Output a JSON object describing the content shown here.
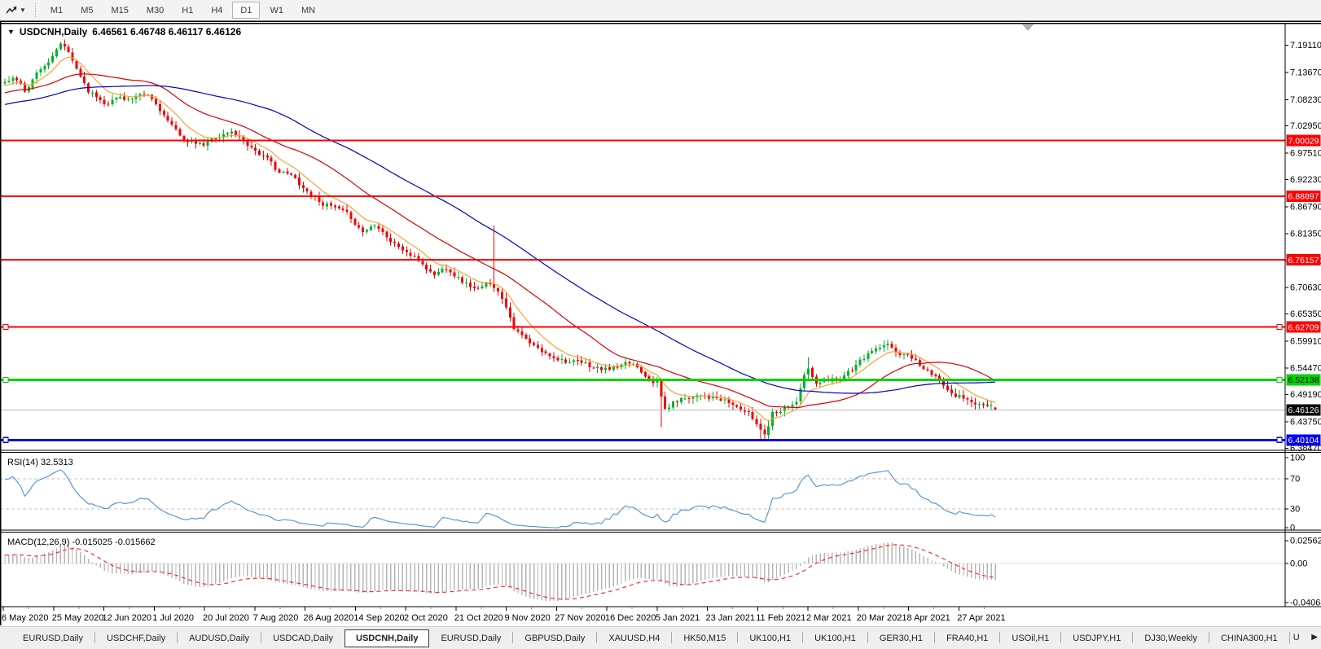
{
  "toolbar": {
    "timeframes": [
      "M1",
      "M5",
      "M15",
      "M30",
      "H1",
      "H4",
      "D1",
      "W1",
      "MN"
    ],
    "active_timeframe": "D1"
  },
  "chart_header": {
    "collapse_icon": "▼",
    "title": "USDCNH,Daily",
    "ohlc_display": "6.46561 6.46748 6.46117 6.46126"
  },
  "indicators": {
    "rsi": {
      "label": "RSI(14)",
      "value": "32.5313"
    },
    "macd": {
      "label": "MACD(12,26,9)",
      "values": "-0.015025 -0.015662"
    }
  },
  "tabs": {
    "items": [
      "EURUSD,Daily",
      "USDCHF,Daily",
      "AUDUSD,Daily",
      "USDCAD,Daily",
      "USDCNH,Daily",
      "EURUSD,Daily",
      "GBPUSD,Daily",
      "XAUUSD,H4",
      "HK50,M15",
      "UK100,H1",
      "UK100,H1",
      "GER30,H1",
      "FRA40,H1",
      "USOil,H1",
      "USDJPY,H1",
      "DJ30,Weekly",
      "CHINA300,H1"
    ],
    "active_index": 4,
    "overflow_item": "U",
    "scroll_right_icon": "▶"
  },
  "colors": {
    "bull": "#00b22c",
    "bear": "#f20000",
    "ma_fast": "#ffa033",
    "ma_mid": "#dd0000",
    "ma_slow": "#0000cc",
    "rsi_line": "#4f8fd6",
    "rsi_levels": "#c6c6c6",
    "macd_hist": "#b6b6b6",
    "macd_signal": "#ff2020",
    "price_line": "#b8b8b8",
    "panel_border": "#000000",
    "axis_text": "#000000",
    "shift_marker": "#b0b0b0",
    "label_black_bg": "#000000"
  },
  "chart_data": {
    "type": "candlestick",
    "title": "USDCNH,Daily",
    "last_candle_ohlc": {
      "open": 6.46561,
      "high": 6.46748,
      "low": 6.46117,
      "close": 6.46126
    },
    "x_axis": {
      "labels": [
        "6 May 2020",
        "25 May 2020",
        "12 Jun 2020",
        "1 Jul 2020",
        "20 Jul 2020",
        "7 Aug 2020",
        "26 Aug 2020",
        "14 Sep 2020",
        "2 Oct 2020",
        "21 Oct 2020",
        "9 Nov 2020",
        "27 Nov 2020",
        "16 Dec 2020",
        "5 Jan 2021",
        "23 Jan 2021",
        "11 Feb 2021",
        "2 Mar 2021",
        "20 Mar 2021",
        "8 Apr 2021",
        "27 Apr 2021"
      ]
    },
    "y_axis": {
      "range": [
        6.381,
        7.207
      ],
      "ticks": [
        "7.19110",
        "7.13670",
        "7.08230",
        "7.02950",
        "6.97510",
        "6.92230",
        "6.86790",
        "6.81350",
        "6.75910",
        "6.70630",
        "6.65350",
        "6.59910",
        "6.54470",
        "6.49190",
        "6.43750",
        "6.38470"
      ]
    },
    "price_path": [
      [
        0,
        7.115
      ],
      [
        0.01,
        7.128
      ],
      [
        0.02,
        7.1
      ],
      [
        0.035,
        7.145
      ],
      [
        0.05,
        7.17
      ],
      [
        0.058,
        7.196
      ],
      [
        0.07,
        7.15
      ],
      [
        0.085,
        7.1
      ],
      [
        0.1,
        7.078
      ],
      [
        0.115,
        7.088
      ],
      [
        0.13,
        7.084
      ],
      [
        0.145,
        7.088
      ],
      [
        0.158,
        7.06
      ],
      [
        0.17,
        7.022
      ],
      [
        0.185,
        6.998
      ],
      [
        0.2,
        6.988
      ],
      [
        0.215,
        7.01
      ],
      [
        0.23,
        7.018
      ],
      [
        0.245,
        6.995
      ],
      [
        0.26,
        6.972
      ],
      [
        0.275,
        6.94
      ],
      [
        0.29,
        6.928
      ],
      [
        0.305,
        6.9
      ],
      [
        0.32,
        6.878
      ],
      [
        0.335,
        6.862
      ],
      [
        0.35,
        6.842
      ],
      [
        0.362,
        6.818
      ],
      [
        0.375,
        6.838
      ],
      [
        0.39,
        6.8
      ],
      [
        0.405,
        6.778
      ],
      [
        0.42,
        6.756
      ],
      [
        0.433,
        6.732
      ],
      [
        0.447,
        6.748
      ],
      [
        0.462,
        6.72
      ],
      [
        0.478,
        6.7
      ],
      [
        0.492,
        6.716
      ],
      [
        0.505,
        6.678
      ],
      [
        0.515,
        6.625
      ],
      [
        0.53,
        6.592
      ],
      [
        0.545,
        6.572
      ],
      [
        0.56,
        6.566
      ],
      [
        0.576,
        6.556
      ],
      [
        0.59,
        6.548
      ],
      [
        0.605,
        6.541
      ],
      [
        0.62,
        6.546
      ],
      [
        0.635,
        6.552
      ],
      [
        0.649,
        6.53
      ],
      [
        0.66,
        6.518
      ],
      [
        0.665,
        6.46
      ],
      [
        0.677,
        6.478
      ],
      [
        0.69,
        6.488
      ],
      [
        0.704,
        6.497
      ],
      [
        0.72,
        6.482
      ],
      [
        0.735,
        6.47
      ],
      [
        0.75,
        6.456
      ],
      [
        0.762,
        6.425
      ],
      [
        0.768,
        6.415
      ],
      [
        0.775,
        6.458
      ],
      [
        0.79,
        6.472
      ],
      [
        0.8,
        6.482
      ],
      [
        0.81,
        6.548
      ],
      [
        0.818,
        6.512
      ],
      [
        0.83,
        6.516
      ],
      [
        0.845,
        6.53
      ],
      [
        0.86,
        6.55
      ],
      [
        0.875,
        6.578
      ],
      [
        0.89,
        6.588
      ],
      [
        0.903,
        6.574
      ],
      [
        0.917,
        6.566
      ],
      [
        0.93,
        6.542
      ],
      [
        0.944,
        6.516
      ],
      [
        0.958,
        6.498
      ],
      [
        0.972,
        6.482
      ],
      [
        0.986,
        6.47
      ],
      [
        1,
        6.4613
      ]
    ],
    "events": {
      "spikes": [
        {
          "t": 0.492,
          "high": 6.83
        },
        {
          "t": 0.664,
          "low": 6.427
        },
        {
          "t": 0.764,
          "low": 6.398
        },
        {
          "t": 0.812,
          "high": 6.567
        }
      ]
    },
    "horizontal_lines": [
      {
        "price": 7.00029,
        "color": "#fe0000",
        "width": 2,
        "label_text": "#ffffff",
        "handles": false
      },
      {
        "price": 6.88897,
        "color": "#fe0000",
        "width": 2,
        "label_text": "#ffffff",
        "handles": false
      },
      {
        "price": 6.76157,
        "color": "#fe0000",
        "width": 2,
        "label_text": "#ffffff",
        "handles": false
      },
      {
        "price": 6.62709,
        "color": "#fe0000",
        "width": 2,
        "label_text": "#ffffff",
        "handles": true
      },
      {
        "price": 6.52138,
        "color": "#00d200",
        "width": 3,
        "label_text": "#000000",
        "handles": true
      },
      {
        "price": 6.40104,
        "color": "#0000f0",
        "width": 3,
        "label_text": "#ffffff",
        "handles": true
      }
    ],
    "current_price": {
      "value": "6.46126",
      "price": 6.46126
    },
    "moving_averages": [
      {
        "name": "fast",
        "type": "ema",
        "period": 9,
        "color": "#ffa033"
      },
      {
        "name": "medium",
        "type": "sma",
        "period": 28,
        "color": "#dd0000"
      },
      {
        "name": "slow",
        "type": "sma",
        "period": 60,
        "color": "#0000cc"
      }
    ],
    "indicators": [
      {
        "type": "line",
        "name": "RSI",
        "params": "14",
        "display_value": "32.5313",
        "levels": [
          70,
          30
        ],
        "scale_ticks": [
          "100",
          "70",
          "30",
          "0"
        ],
        "range": [
          0,
          100
        ],
        "color": "#4f8fd6"
      },
      {
        "type": "macd",
        "name": "MACD",
        "params": "12,26,9",
        "display_values": "-0.015025 -0.015662",
        "scale_ticks": [
          "0.025623",
          "0.00",
          "-0.040687"
        ],
        "range": [
          -0.040687,
          0.025623
        ],
        "histogram_color": "#b6b6b6",
        "signal_color": "#ff2020"
      }
    ],
    "bars_visible": 250,
    "render_seed": 11
  }
}
